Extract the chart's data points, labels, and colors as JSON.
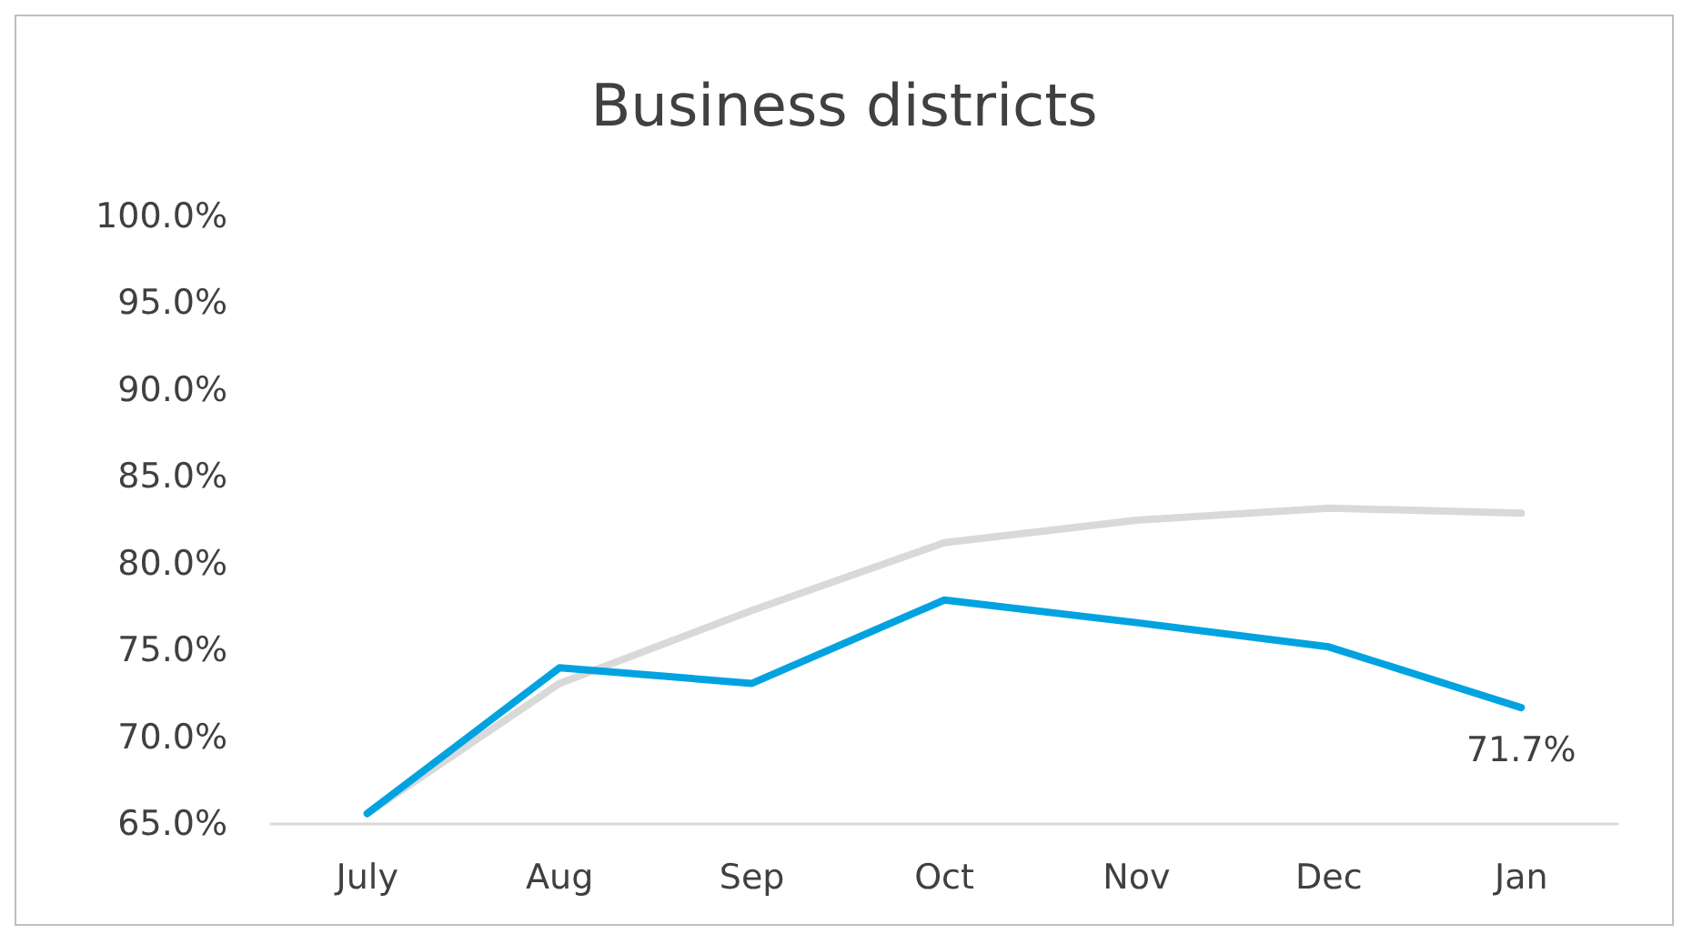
{
  "chart_data": {
    "type": "line",
    "title": "Business districts",
    "categories": [
      "July",
      "Aug",
      "Sep",
      "Oct",
      "Nov",
      "Dec",
      "Jan"
    ],
    "series": [
      {
        "color": "#d9d9d9",
        "values": [
          65.6,
          73.1,
          77.3,
          81.2,
          82.5,
          83.2,
          82.9
        ]
      },
      {
        "color": "#00a3e0",
        "values": [
          65.6,
          74.0,
          73.1,
          77.9,
          76.6,
          75.2,
          71.7
        ],
        "value_labels": [
          null,
          null,
          null,
          null,
          null,
          null,
          "71.7%"
        ]
      }
    ],
    "ylim": [
      65,
      100
    ],
    "yticks": [
      {
        "value": 65,
        "label": "65.0%"
      },
      {
        "value": 70,
        "label": "70.0%"
      },
      {
        "value": 75,
        "label": "75.0%"
      },
      {
        "value": 80,
        "label": "80.0%"
      },
      {
        "value": 85,
        "label": "85.0%"
      },
      {
        "value": 90,
        "label": "90.0%"
      },
      {
        "value": 95,
        "label": "95.0%"
      },
      {
        "value": 100,
        "label": "100.0%"
      }
    ],
    "grid": false,
    "marker": "none",
    "line_style": "solid"
  }
}
